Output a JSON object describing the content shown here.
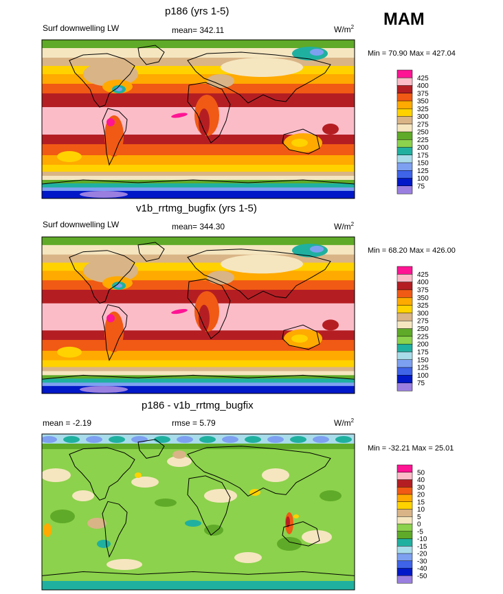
{
  "season": "MAM",
  "colors": {
    "main": [
      "#9a7fe0",
      "#0018c8",
      "#3f64e8",
      "#7ea0f0",
      "#a9dcea",
      "#20b0a0",
      "#8cd24c",
      "#5faa28",
      "#f5e6c0",
      "#d9b486",
      "#ffd200",
      "#ffaa00",
      "#f05a14",
      "#b41e23",
      "#fbbcc8",
      "#ff1493"
    ],
    "diff": [
      "#9a7fe0",
      "#0018c8",
      "#3f64e8",
      "#7ea0f0",
      "#a9dcea",
      "#20b0a0",
      "#5faa28",
      "#8cd24c",
      "#f5e6c0",
      "#d9b486",
      "#ffd200",
      "#ffaa00",
      "#f05a14",
      "#b41e23",
      "#fbbcc8",
      "#ff1493"
    ]
  },
  "panels": [
    {
      "title": "p186 (yrs 1-5)",
      "left_label": "Surf downwelling LW",
      "mean_label": "mean= 342.11",
      "units": "W/m",
      "units_sup": "2",
      "minmax": "Min =  70.90 Max = 427.04",
      "levels": [
        "425",
        "400",
        "375",
        "350",
        "325",
        "300",
        "275",
        "250",
        "225",
        "200",
        "175",
        "150",
        "125",
        "100",
        "75"
      ],
      "palette": "main"
    },
    {
      "title": "v1b_rrtmg_bugfix (yrs 1-5)",
      "left_label": "Surf downwelling LW",
      "mean_label": "mean= 344.30",
      "units": "W/m",
      "units_sup": "2",
      "minmax": "Min =  68.20 Max = 426.00",
      "levels": [
        "425",
        "400",
        "375",
        "350",
        "325",
        "300",
        "275",
        "250",
        "225",
        "200",
        "175",
        "150",
        "125",
        "100",
        "75"
      ],
      "palette": "main"
    },
    {
      "title": "p186 - v1b_rrtmg_bugfix",
      "left_label": "mean =  -2.19",
      "mean_label": "rmse =   5.79",
      "units": "W/m",
      "units_sup": "2",
      "minmax": "Min = -32.21 Max =  25.01",
      "levels": [
        "50",
        "40",
        "30",
        "20",
        "15",
        "10",
        "5",
        "0",
        "-5",
        "-10",
        "-15",
        "-20",
        "-30",
        "-40",
        "-50"
      ],
      "palette": "diff"
    }
  ],
  "chart_data": [
    {
      "type": "heatmap",
      "title": "p186 (yrs 1-5)",
      "subtitle": "Surf downwelling LW",
      "mean": 342.11,
      "min": 70.9,
      "max": 427.04,
      "units": "W/m2",
      "contour_levels": [
        75,
        100,
        125,
        150,
        175,
        200,
        225,
        250,
        275,
        300,
        325,
        350,
        375,
        400,
        425
      ]
    },
    {
      "type": "heatmap",
      "title": "v1b_rrtmg_bugfix (yrs 1-5)",
      "subtitle": "Surf downwelling LW",
      "mean": 344.3,
      "min": 68.2,
      "max": 426.0,
      "units": "W/m2",
      "contour_levels": [
        75,
        100,
        125,
        150,
        175,
        200,
        225,
        250,
        275,
        300,
        325,
        350,
        375,
        400,
        425
      ]
    },
    {
      "type": "heatmap",
      "title": "p186 - v1b_rrtmg_bugfix",
      "mean": -2.19,
      "rmse": 5.79,
      "min": -32.21,
      "max": 25.01,
      "units": "W/m2",
      "contour_levels": [
        -50,
        -40,
        -30,
        -20,
        -15,
        -10,
        -5,
        0,
        5,
        10,
        15,
        20,
        30,
        40,
        50
      ]
    }
  ]
}
